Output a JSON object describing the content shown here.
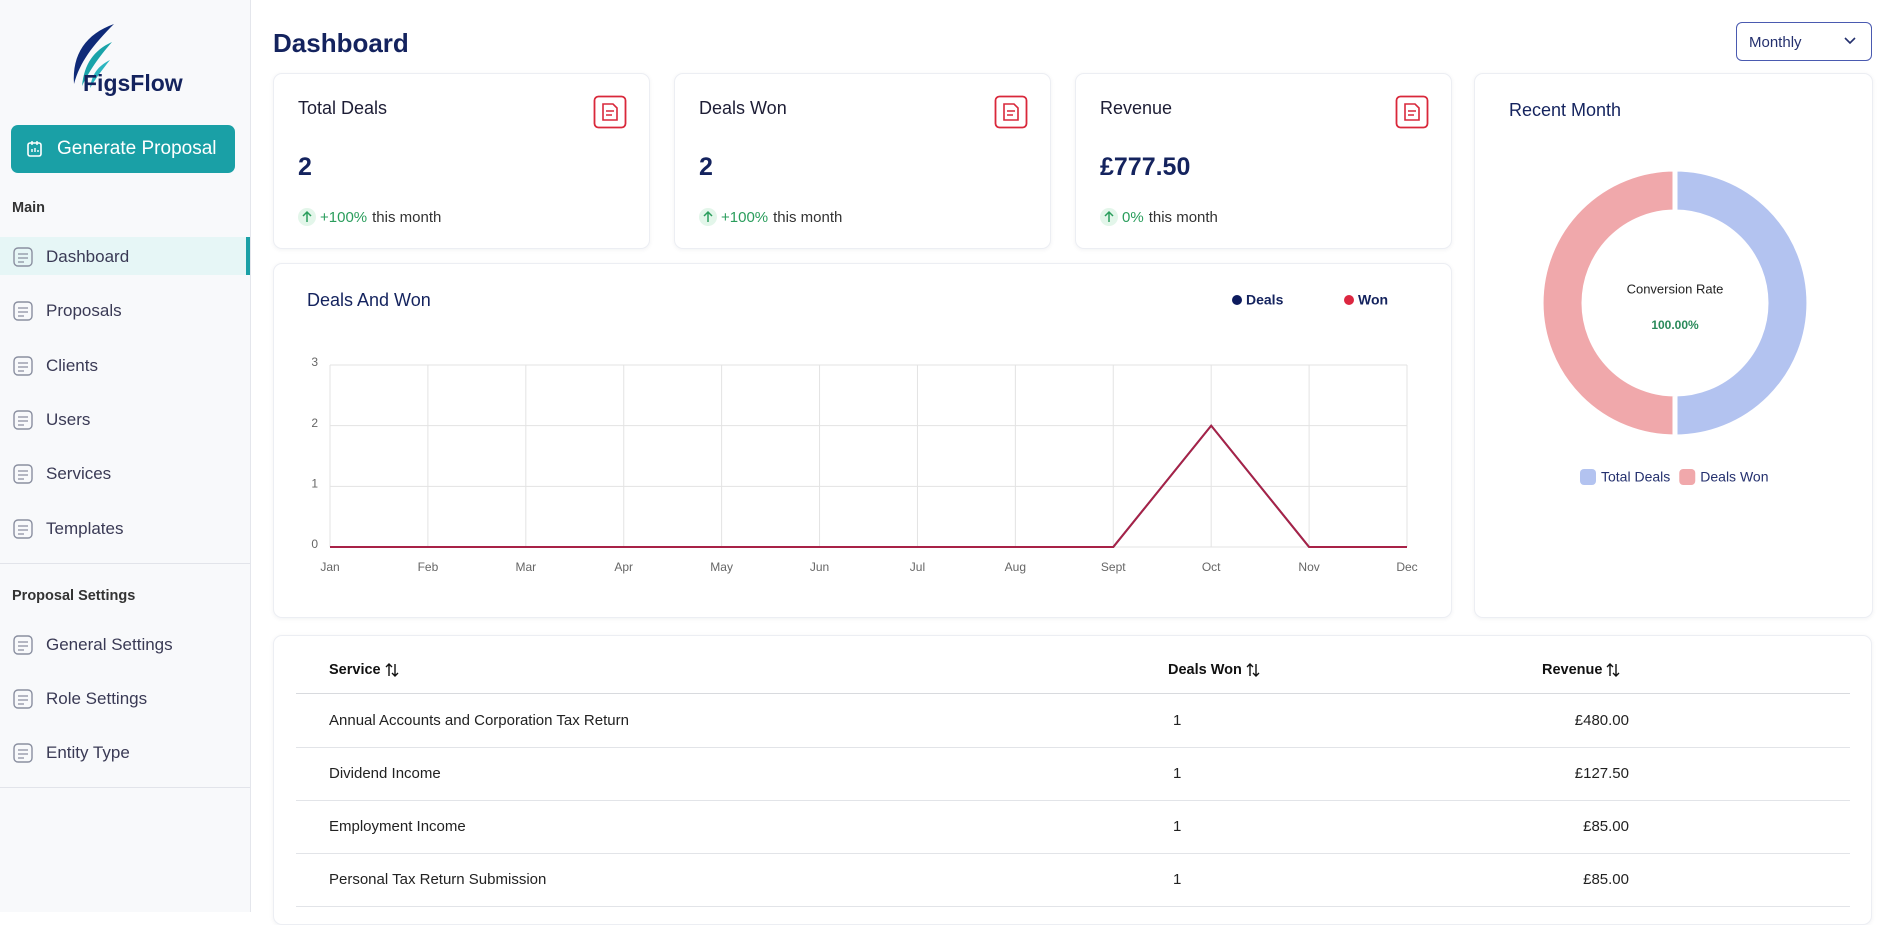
{
  "sidebar": {
    "logo": "FigsFlow",
    "button": "Generate Proposal",
    "sections": [
      {
        "title": "Main",
        "items": [
          "Dashboard",
          "Proposals",
          "Clients",
          "Users",
          "Services",
          "Templates"
        ]
      },
      {
        "title": "Proposal Settings",
        "items": [
          "General Settings",
          "Role Settings",
          "Entity Type"
        ]
      }
    ]
  },
  "header": {
    "title": "Dashboard",
    "period": "Monthly"
  },
  "cards": [
    {
      "title": "Total Deals",
      "value": 2,
      "change": "+100%",
      "note": "this month"
    },
    {
      "title": "Deals Won",
      "value": 2,
      "change": "+100%",
      "note": "this month"
    },
    {
      "title": "Revenue",
      "value": "£777.50",
      "change": "0%",
      "note": "this month"
    }
  ],
  "chart_data": [
    {
      "type": "line",
      "title": "Deals And Won",
      "categories": [
        "Jan",
        "Feb",
        "Mar",
        "Apr",
        "May",
        "Jun",
        "Jul",
        "Aug",
        "Sept",
        "Oct",
        "Nov",
        "Dec"
      ],
      "series": [
        {
          "name": "Deals",
          "color": "#0d1b5e",
          "values": [
            0,
            0,
            0,
            0,
            0,
            0,
            0,
            0,
            0,
            2,
            0,
            0
          ]
        },
        {
          "name": "Won",
          "color": "#dc2640",
          "values": [
            0,
            0,
            0,
            0,
            0,
            0,
            0,
            0,
            0,
            2,
            0,
            0
          ]
        }
      ],
      "ylim": [
        0,
        3
      ],
      "yticks": [
        0,
        1,
        2,
        3
      ],
      "grid": true,
      "legend": "top-right"
    },
    {
      "type": "donut",
      "title": "Recent Month",
      "center_label": "Conversion Rate",
      "center_value": "100.00%",
      "categories": [
        "Total Deals",
        "Deals Won"
      ],
      "values": [
        2,
        2
      ],
      "colors": [
        "#b3c3f0",
        "#f0a8ab"
      ],
      "legend": "bottom"
    }
  ],
  "table": {
    "columns": [
      "Service",
      "Deals Won",
      "Revenue"
    ],
    "rows": [
      [
        "Annual Accounts and Corporation Tax Return",
        1,
        "£480.00"
      ],
      [
        "Dividend Income",
        1,
        "£127.50"
      ],
      [
        "Employment Income",
        1,
        "£85.00"
      ],
      [
        "Personal Tax Return Submission",
        1,
        "£85.00"
      ]
    ]
  }
}
